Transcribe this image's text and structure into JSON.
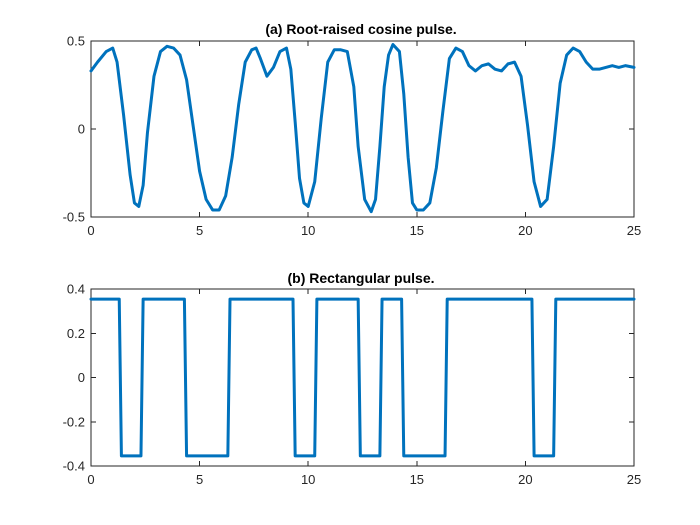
{
  "chart_data": [
    {
      "type": "line",
      "title": "(a) Root-raised cosine pulse.",
      "xlabel": "",
      "ylabel": "",
      "xlim": [
        0,
        25
      ],
      "ylim": [
        -0.5,
        0.5
      ],
      "xticks": [
        0,
        5,
        10,
        15,
        20,
        25
      ],
      "yticks": [
        -0.5,
        0,
        0.5
      ],
      "ytick_labels": [
        "-0.5",
        "0",
        "0.5"
      ],
      "grid": false,
      "color": "#0072BD",
      "series": [
        {
          "x": [
            0,
            0.3,
            0.7,
            1.0,
            1.2,
            1.5,
            1.8,
            2.0,
            2.2,
            2.4,
            2.6,
            2.9,
            3.2,
            3.5,
            3.8,
            4.1,
            4.4,
            4.7,
            5.0,
            5.3,
            5.6,
            5.9,
            6.2,
            6.5,
            6.8,
            7.1,
            7.4,
            7.6,
            7.8,
            8.1,
            8.4,
            8.7,
            9.0,
            9.2,
            9.4,
            9.6,
            9.8,
            10.0,
            10.3,
            10.6,
            10.9,
            11.2,
            11.5,
            11.8,
            12.1,
            12.3,
            12.6,
            12.9,
            13.1,
            13.3,
            13.5,
            13.7,
            13.9,
            14.2,
            14.4,
            14.6,
            14.8,
            15.0,
            15.3,
            15.6,
            15.9,
            16.2,
            16.5,
            16.8,
            17.1,
            17.4,
            17.7,
            18.0,
            18.3,
            18.6,
            18.9,
            19.2,
            19.5,
            19.8,
            20.1,
            20.4,
            20.7,
            21.0,
            21.3,
            21.6,
            21.9,
            22.2,
            22.5,
            22.8,
            23.1,
            23.4,
            23.7,
            24.0,
            24.3,
            24.6,
            25.0
          ],
          "y": [
            0.33,
            0.38,
            0.44,
            0.46,
            0.38,
            0.08,
            -0.26,
            -0.42,
            -0.44,
            -0.32,
            -0.02,
            0.3,
            0.44,
            0.47,
            0.46,
            0.42,
            0.28,
            0.02,
            -0.24,
            -0.4,
            -0.46,
            -0.46,
            -0.38,
            -0.16,
            0.14,
            0.38,
            0.45,
            0.46,
            0.4,
            0.3,
            0.35,
            0.44,
            0.46,
            0.34,
            0.04,
            -0.28,
            -0.42,
            -0.44,
            -0.3,
            0.06,
            0.38,
            0.45,
            0.45,
            0.44,
            0.24,
            -0.1,
            -0.4,
            -0.47,
            -0.4,
            -0.1,
            0.24,
            0.42,
            0.48,
            0.44,
            0.2,
            -0.16,
            -0.42,
            -0.46,
            -0.46,
            -0.42,
            -0.22,
            0.1,
            0.4,
            0.46,
            0.44,
            0.36,
            0.33,
            0.36,
            0.37,
            0.34,
            0.33,
            0.37,
            0.38,
            0.3,
            0.02,
            -0.3,
            -0.44,
            -0.4,
            -0.1,
            0.26,
            0.42,
            0.46,
            0.44,
            0.38,
            0.34,
            0.34,
            0.35,
            0.36,
            0.35,
            0.36,
            0.35
          ]
        }
      ]
    },
    {
      "type": "line",
      "title": "(b) Rectangular pulse.",
      "xlabel": "",
      "ylabel": "",
      "xlim": [
        0,
        25
      ],
      "ylim": [
        -0.4,
        0.4
      ],
      "xticks": [
        0,
        5,
        10,
        15,
        20,
        25
      ],
      "yticks": [
        -0.4,
        -0.2,
        0,
        0.2,
        0.4
      ],
      "ytick_labels": [
        "-0.4",
        "-0.2",
        "0",
        "0.2",
        "0.4"
      ],
      "grid": false,
      "color": "#0072BD",
      "series": [
        {
          "x": [
            0,
            1.3,
            1.4,
            2.3,
            2.4,
            4.3,
            4.4,
            6.3,
            6.4,
            9.3,
            9.4,
            10.3,
            10.4,
            12.3,
            12.4,
            13.3,
            13.4,
            14.3,
            14.4,
            16.3,
            16.4,
            20.3,
            20.4,
            21.3,
            21.4,
            25
          ],
          "y": [
            0.354,
            0.354,
            -0.354,
            -0.354,
            0.354,
            0.354,
            -0.354,
            -0.354,
            0.354,
            0.354,
            -0.354,
            -0.354,
            0.354,
            0.354,
            -0.354,
            -0.354,
            0.354,
            0.354,
            -0.354,
            -0.354,
            0.354,
            0.354,
            -0.354,
            -0.354,
            0.354,
            0.354
          ]
        }
      ]
    }
  ]
}
